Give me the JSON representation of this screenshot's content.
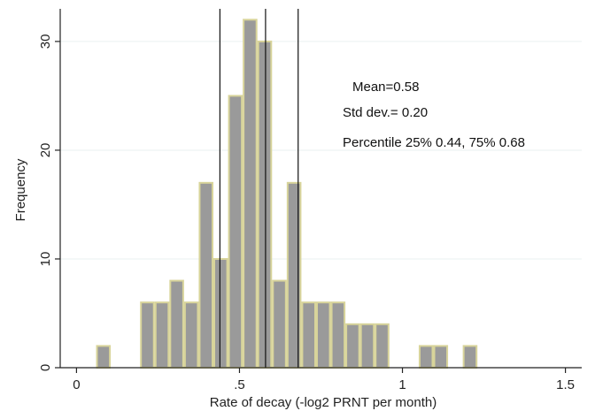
{
  "chart_data": {
    "type": "bar",
    "title": "",
    "xlabel": "Rate of decay (-log2 PRNT per month)",
    "ylabel": "Frequency",
    "xlim": [
      -0.05,
      1.55
    ],
    "ylim": [
      0,
      33
    ],
    "xticks": [
      0,
      0.5,
      1,
      1.5
    ],
    "xtick_labels": [
      "0",
      ".5",
      "1",
      "1.5"
    ],
    "yticks": [
      0,
      10,
      20,
      30
    ],
    "ytick_labels": [
      "0",
      "10",
      "20",
      "30"
    ],
    "grid": true,
    "bin_width": 0.045,
    "bins": [
      {
        "start": 0.06,
        "value": 2
      },
      {
        "start": 0.105,
        "value": 0
      },
      {
        "start": 0.15,
        "value": 0
      },
      {
        "start": 0.195,
        "value": 6
      },
      {
        "start": 0.24,
        "value": 6
      },
      {
        "start": 0.285,
        "value": 8
      },
      {
        "start": 0.33,
        "value": 6
      },
      {
        "start": 0.375,
        "value": 17
      },
      {
        "start": 0.42,
        "value": 10
      },
      {
        "start": 0.465,
        "value": 25
      },
      {
        "start": 0.51,
        "value": 32
      },
      {
        "start": 0.555,
        "value": 30
      },
      {
        "start": 0.6,
        "value": 8
      },
      {
        "start": 0.645,
        "value": 17
      },
      {
        "start": 0.69,
        "value": 6
      },
      {
        "start": 0.735,
        "value": 6
      },
      {
        "start": 0.78,
        "value": 6
      },
      {
        "start": 0.825,
        "value": 4
      },
      {
        "start": 0.87,
        "value": 4
      },
      {
        "start": 0.915,
        "value": 4
      },
      {
        "start": 0.96,
        "value": 0
      },
      {
        "start": 1.005,
        "value": 0
      },
      {
        "start": 1.05,
        "value": 2
      },
      {
        "start": 1.095,
        "value": 2
      },
      {
        "start": 1.14,
        "value": 0
      },
      {
        "start": 1.185,
        "value": 2
      }
    ],
    "reference_lines": [
      0.44,
      0.58,
      0.68
    ],
    "annotations": [
      "Mean=0.58",
      "Std dev.= 0.20",
      "Percentile 25% 0.44, 75% 0.68"
    ],
    "colors": {
      "bar_fill": "#9a9a9a",
      "bar_stroke": "#d8d49a",
      "ref_line": "#111111",
      "grid": "#eaf1f1",
      "axis": "#222222"
    }
  }
}
